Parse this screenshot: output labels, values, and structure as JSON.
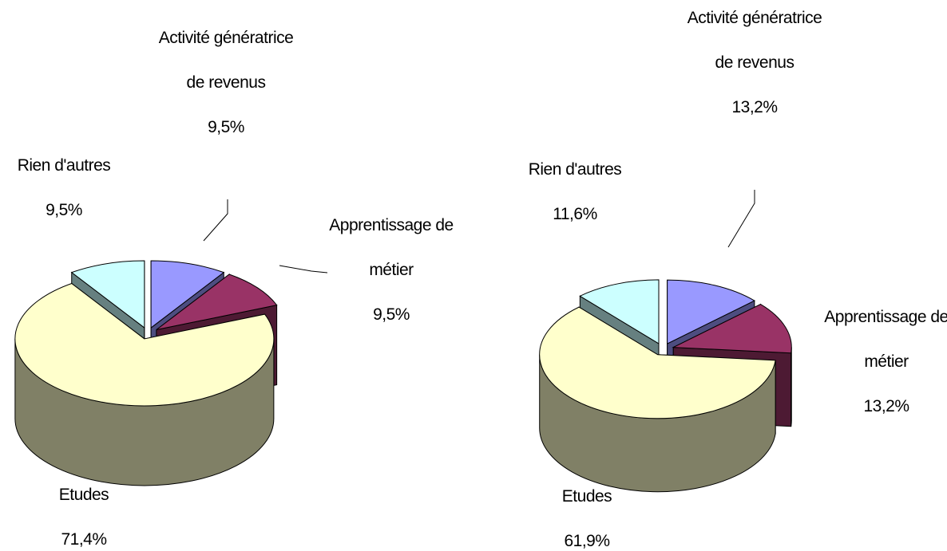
{
  "chart_data": [
    {
      "type": "pie",
      "categories": [
        "Activité génératrice de revenus",
        "Apprentissage de métier",
        "Etudes",
        "Rien d'autres"
      ],
      "values": [
        9.5,
        9.5,
        71.4,
        9.5
      ],
      "value_labels": [
        "9,5%",
        "9,5%",
        "71,4%",
        "9,5%"
      ],
      "colors": [
        "#9999ff",
        "#993366",
        "#ffffcc",
        "#ccffff"
      ]
    },
    {
      "type": "pie",
      "categories": [
        "Activité génératrice de revenus",
        "Apprentissage de métier",
        "Etudes",
        "Rien d'autres"
      ],
      "values": [
        13.2,
        13.2,
        61.9,
        11.6
      ],
      "value_labels": [
        "13,2%",
        "13,2%",
        "61,9%",
        "11,6%"
      ],
      "colors": [
        "#9999ff",
        "#993366",
        "#ffffcc",
        "#ccffff"
      ]
    }
  ]
}
